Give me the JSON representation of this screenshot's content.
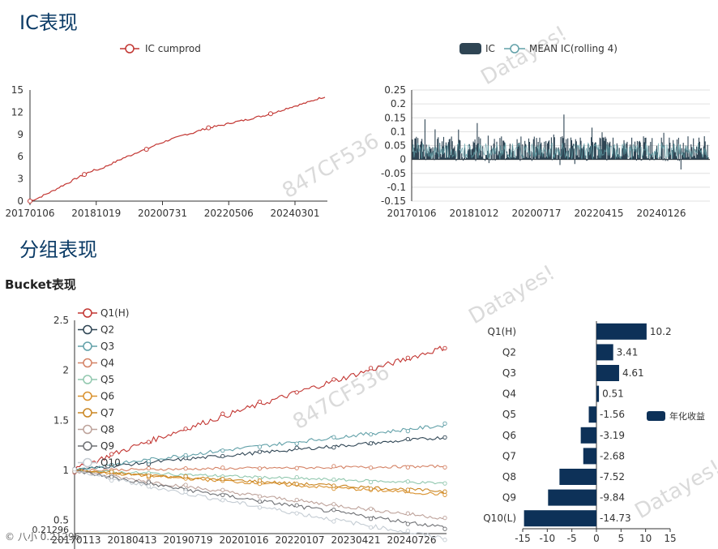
{
  "sections": {
    "ic_title": "IC表现",
    "group_title": "分组表现",
    "bucket_title": "Bucket表现"
  },
  "watermarks": [
    "847CF536",
    "Datayes!"
  ],
  "footer_label": "© 八小 0.21296",
  "chart_data": [
    {
      "id": "ic_cumprod",
      "type": "line",
      "legend": [
        "IC cumprod"
      ],
      "color": "#c23531",
      "x_tick_labels": [
        "20170106",
        "20181019",
        "20200731",
        "20220506",
        "20240301"
      ],
      "y_ticks": [
        0,
        3,
        6,
        9,
        12,
        15
      ],
      "ylim": [
        0,
        15
      ],
      "series": [
        {
          "name": "IC cumprod",
          "values": [
            0,
            0.4,
            0.9,
            1.4,
            2.0,
            2.5,
            3.1,
            3.6,
            4.1,
            4.3,
            4.8,
            5.3,
            5.8,
            6.2,
            6.7,
            7.0,
            7.5,
            7.9,
            8.3,
            8.6,
            9.0,
            9.2,
            9.6,
            9.9,
            10.1,
            10.3,
            10.6,
            10.8,
            11.0,
            11.3,
            11.5,
            11.8,
            12.1,
            12.5,
            12.8,
            13.1,
            13.4,
            13.8,
            14.1
          ]
        }
      ]
    },
    {
      "id": "ic_bars",
      "type": "bar",
      "legend": [
        "IC",
        "MEAN IC(rolling 4)"
      ],
      "colors": [
        "#2f4554",
        "#61a0a8"
      ],
      "x_tick_labels": [
        "20170106",
        "20181012",
        "20200717",
        "20220415",
        "20240126"
      ],
      "y_ticks": [
        -0.15,
        -0.1,
        -0.05,
        0,
        0.05,
        0.1,
        0.15,
        0.2,
        0.25
      ],
      "y_tick_labels": [
        "-0.15",
        "-0.1",
        "-0.05",
        "0",
        "0.05",
        "0.1",
        "0.15",
        "0.2",
        "0.25"
      ],
      "ylim": [
        -0.15,
        0.25
      ]
    },
    {
      "id": "bucket_lines",
      "type": "line",
      "legend": [
        "Q1(H)",
        "Q2",
        "Q3",
        "Q4",
        "Q5",
        "Q6",
        "Q7",
        "Q8",
        "Q9",
        "Q10"
      ],
      "colors": [
        "#c23531",
        "#2f4554",
        "#61a0a8",
        "#d48265",
        "#91c7ae",
        "#d9912d",
        "#ca8622",
        "#bda29a",
        "#6e7074",
        "#c4ccd3"
      ],
      "x_tick_labels": [
        "20170113",
        "20180413",
        "20190719",
        "20201016",
        "20220107",
        "20230421",
        "20240726"
      ],
      "y_ticks": [
        0.5,
        1,
        1.5,
        2,
        2.5
      ],
      "ylim": [
        0.21296,
        2.5
      ],
      "y_min_label": "0.21296",
      "series": [
        {
          "name": "Q1(H)",
          "end": 2.23
        },
        {
          "name": "Q2",
          "end": 1.33
        },
        {
          "name": "Q3",
          "end": 1.45
        },
        {
          "name": "Q4",
          "end": 1.04
        },
        {
          "name": "Q5",
          "end": 0.87
        },
        {
          "name": "Q6",
          "end": 0.76
        },
        {
          "name": "Q7",
          "end": 0.79
        },
        {
          "name": "Q8",
          "end": 0.52
        },
        {
          "name": "Q9",
          "end": 0.43
        },
        {
          "name": "Q10",
          "end": 0.32
        }
      ]
    },
    {
      "id": "annual_return",
      "type": "bar",
      "orientation": "horizontal",
      "legend": [
        "年化收益"
      ],
      "color": "#0d3158",
      "categories": [
        "Q1(H)",
        "Q2",
        "Q3",
        "Q4",
        "Q5",
        "Q6",
        "Q7",
        "Q8",
        "Q9",
        "Q10(L)"
      ],
      "values": [
        10.2,
        3.41,
        4.61,
        0.51,
        -1.56,
        -3.19,
        -2.68,
        -7.52,
        -9.84,
        -14.73
      ],
      "value_labels": [
        "10.2",
        "3.41",
        "4.61",
        "0.51",
        "-1.56",
        "-3.19",
        "-2.68",
        "-7.52",
        "-9.84",
        "-14.73"
      ],
      "x_ticks": [
        -15,
        -10,
        -5,
        0,
        5,
        10,
        15
      ],
      "xlim": [
        -15,
        15
      ]
    }
  ]
}
